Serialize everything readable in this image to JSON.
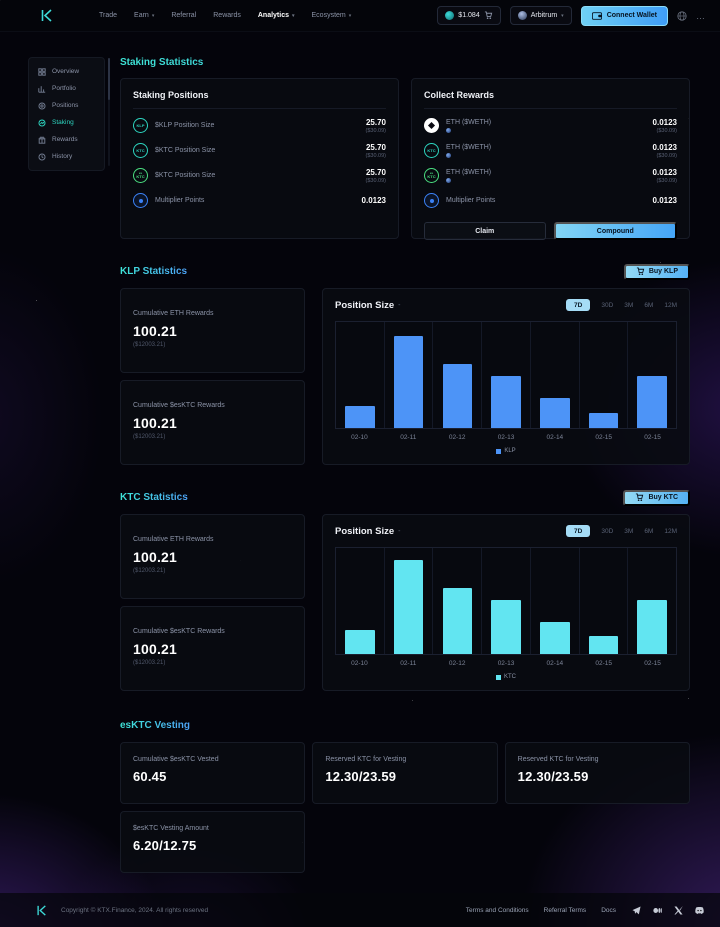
{
  "nav": {
    "items": [
      {
        "label": "Trade",
        "caret": false,
        "active": false
      },
      {
        "label": "Earn",
        "caret": true,
        "active": false
      },
      {
        "label": "Referral",
        "caret": false,
        "active": false
      },
      {
        "label": "Rewards",
        "caret": false,
        "active": false
      },
      {
        "label": "Analytics",
        "caret": true,
        "active": true
      },
      {
        "label": "Ecosystem",
        "caret": true,
        "active": false
      }
    ],
    "price": "$1.084",
    "network": "Arbitrum",
    "connect_label": "Connect Wallet"
  },
  "sidebar": {
    "items": [
      {
        "label": "Overview",
        "active": false
      },
      {
        "label": "Portfolio",
        "active": false
      },
      {
        "label": "Positions",
        "active": false
      },
      {
        "label": "Staking",
        "active": true
      },
      {
        "label": "Rewards",
        "active": false
      },
      {
        "label": "History",
        "active": false
      }
    ]
  },
  "staking": {
    "heading": "Staking Statistics",
    "positions": {
      "title": "Staking Positions",
      "rows": [
        {
          "icon": "KLP",
          "label": "$KLP Position Size",
          "value": "25.70",
          "sub": "($30.09)"
        },
        {
          "icon": "KTC",
          "label": "$KTC Position Size",
          "value": "25.70",
          "sub": "($30.09)"
        },
        {
          "icon": "esKTC",
          "label": "$KTC Position Size",
          "value": "25.70",
          "sub": "($30.09)"
        },
        {
          "icon": "multiplier",
          "label": "Multiplier Points",
          "value": "0.0123",
          "sub": ""
        }
      ]
    },
    "rewards": {
      "title": "Collect Rewards",
      "rows": [
        {
          "icon": "ETH",
          "label": "ETH ($WETH)",
          "value": "0.0123",
          "sub": "($30.09)"
        },
        {
          "icon": "KTC",
          "label": "ETH ($WETH)",
          "value": "0.0123",
          "sub": "($30.09)"
        },
        {
          "icon": "esKTC",
          "label": "ETH ($WETH)",
          "value": "0.0123",
          "sub": "($30.09)"
        },
        {
          "icon": "multiplier",
          "label": "Multiplier Points",
          "value": "0.0123",
          "sub": ""
        }
      ],
      "claim_label": "Claim",
      "compound_label": "Compound"
    }
  },
  "klp": {
    "heading": "KLP Statistics",
    "buy_label": "Buy KLP",
    "stat_cards": [
      {
        "label": "Cumulative ETH Rewards",
        "value": "100.21",
        "sub": "($12003.21)"
      },
      {
        "label": "Cumulative $esKTC Rewards",
        "value": "100.21",
        "sub": "($12003.21)"
      }
    ]
  },
  "ktc": {
    "heading": "KTC Statistics",
    "buy_label": "Buy KTC",
    "stat_cards": [
      {
        "label": "Cumulative ETH Rewards",
        "value": "100.21",
        "sub": "($12003.21)"
      },
      {
        "label": "Cumulative $esKTC Rewards",
        "value": "100.21",
        "sub": "($12003.21)"
      }
    ]
  },
  "vesting": {
    "heading": "esKTC Vesting",
    "cards": [
      {
        "label": "Cumulative $esKTC Vested",
        "value": "60.45"
      },
      {
        "label": "Reserved KTC for Vesting",
        "value": "12.30/23.59"
      },
      {
        "label": "Reserved KTC for Vesting",
        "value": "12.30/23.59"
      },
      {
        "label": "$esKTC Vesting Amount",
        "value": "6.20/12.75"
      }
    ]
  },
  "chart_data": [
    {
      "type": "bar",
      "title": "Position Size",
      "title_marker": "-",
      "categories": [
        "02-10",
        "02-11",
        "02-12",
        "02-13",
        "02-14",
        "02-15",
        "02-15"
      ],
      "values": [
        21,
        87,
        60,
        49,
        28,
        14,
        49
      ],
      "ylim": [
        0,
        100
      ],
      "grid": "vertical",
      "legend_label": "KLP",
      "legend_position": "bottom-center",
      "bar_color": "#4d94f7",
      "tabs": [
        "7D",
        "30D",
        "3M",
        "6M",
        "12M"
      ],
      "active_tab": "7D"
    },
    {
      "type": "bar",
      "title": "Position Size",
      "title_marker": "-",
      "categories": [
        "02-10",
        "02-11",
        "02-12",
        "02-13",
        "02-14",
        "02-15",
        "02-15"
      ],
      "values": [
        23,
        89,
        62,
        51,
        30,
        17,
        51
      ],
      "ylim": [
        0,
        100
      ],
      "grid": "vertical",
      "legend_label": "KTC",
      "legend_position": "bottom-center",
      "bar_color": "#62e5f1",
      "tabs": [
        "7D",
        "30D",
        "3M",
        "6M",
        "12M"
      ],
      "active_tab": "7D"
    }
  ],
  "footer": {
    "copyright": "Copyright © KTX.Finance, 2024. All rights reserved",
    "links": [
      "Terms and Conditions",
      "Referral Terms",
      "Docs"
    ]
  },
  "colors": {
    "accent_teal": "#2dd4bf",
    "accent_green": "#4ade80",
    "heading_gradient_from": "#3ee6d8",
    "heading_gradient_to": "#4da3f8",
    "klp_bar": "#4d94f7",
    "ktc_bar": "#62e5f1",
    "button_gradient_from": "#82d5f3",
    "button_gradient_to": "#45a5f6"
  }
}
